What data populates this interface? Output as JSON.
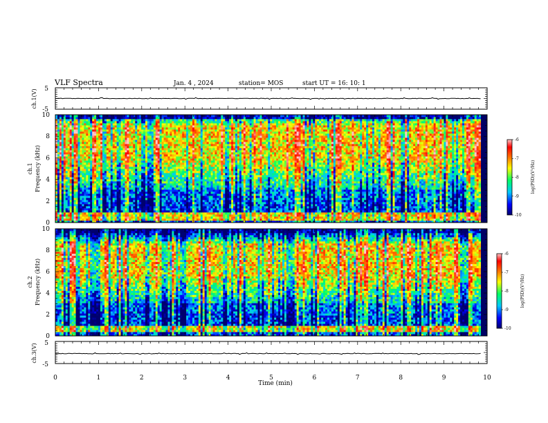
{
  "header": {
    "title": "VLF Spectra",
    "date": "Jan. 4 , 2024",
    "station": "station= MOS",
    "start": "start UT =   16: 10: 1"
  },
  "chart_data": [
    {
      "type": "line",
      "panel": "ch1-voltage",
      "ylabel": "ch.1(V)",
      "ylim": [
        -5,
        5
      ],
      "yticks": [
        5,
        -5
      ],
      "xlim": [
        0,
        10
      ],
      "series": [
        {
          "x": [
            0,
            9.85
          ],
          "y": [
            0,
            0
          ]
        }
      ]
    },
    {
      "type": "heatmap",
      "panel": "ch1-spectrogram",
      "ylabel": "ch.1\nFrequency (kHz)",
      "ylim": [
        0,
        10
      ],
      "yticks": [
        0,
        2,
        4,
        6,
        8,
        10
      ],
      "xlim": [
        0,
        10
      ],
      "data_x_range": [
        0,
        9.85
      ],
      "high_power_bands_khz": [
        [
          0.2,
          1.0
        ],
        [
          6.0,
          9.0
        ]
      ],
      "colorbar": {
        "label": "log(PSD)(V²/Hz)",
        "ticks": [
          -6,
          -7,
          -8,
          -9,
          -10
        ],
        "range": [
          -10,
          -6
        ]
      }
    },
    {
      "type": "heatmap",
      "panel": "ch2-spectrogram",
      "ylabel": "ch.2\nFrequency (kHz)",
      "ylim": [
        0,
        10
      ],
      "yticks": [
        0,
        2,
        4,
        6,
        8,
        10
      ],
      "xlim": [
        0,
        10
      ],
      "data_x_range": [
        0,
        9.85
      ],
      "high_power_bands_khz": [
        [
          0.3,
          0.9
        ],
        [
          5.5,
          8.5
        ]
      ],
      "colorbar": {
        "label": "log(PSD)(V²/Hz)",
        "ticks": [
          -6,
          -7,
          -8,
          -9,
          -10
        ],
        "range": [
          -10,
          -6
        ]
      }
    },
    {
      "type": "line",
      "panel": "ch3-voltage",
      "ylabel": "ch.3(V)",
      "ylim": [
        -5,
        5
      ],
      "yticks": [
        5,
        -5
      ],
      "xlim": [
        0,
        10
      ],
      "xlabel": "Time (min)",
      "xticks": [
        0,
        1,
        2,
        3,
        4,
        5,
        6,
        7,
        8,
        9,
        10
      ],
      "series": [
        {
          "x": [
            0,
            9.85
          ],
          "y": [
            -0.5,
            -0.5
          ]
        }
      ]
    }
  ],
  "colormap": [
    "#00006e",
    "#0000ff",
    "#00c8ff",
    "#00ff64",
    "#ffff00",
    "#ff7800",
    "#ff0000",
    "#ffc8c8"
  ]
}
